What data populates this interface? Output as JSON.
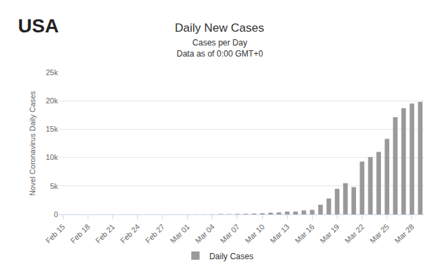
{
  "chart_data": {
    "type": "bar",
    "title": "Daily New Cases",
    "subtitle": [
      "Cases per Day",
      "Data as of 0:00 GMT+0"
    ],
    "annotations": [
      "USA"
    ],
    "y_label": "Novel Coronavirus Daily Cases",
    "categories": [
      "Feb 15",
      null,
      null,
      "Feb 18",
      null,
      null,
      "Feb 21",
      null,
      null,
      "Feb 24",
      null,
      null,
      "Feb 27",
      null,
      null,
      "Mar 01",
      null,
      null,
      "Mar 04",
      null,
      null,
      "Mar 07",
      null,
      null,
      "Mar 10",
      null,
      null,
      "Mar 13",
      null,
      null,
      "Mar 16",
      null,
      null,
      "Mar 19",
      null,
      null,
      "Mar 22",
      null,
      null,
      "Mar 25",
      null,
      null,
      "Mar 28",
      null
    ],
    "series": [
      {
        "name": "Daily Cases",
        "color": "#999999",
        "values": [
          0,
          0,
          0,
          0,
          0,
          0,
          0,
          0,
          0,
          0,
          0,
          0,
          0,
          0,
          0,
          10,
          20,
          20,
          30,
          70,
          60,
          100,
          100,
          150,
          200,
          300,
          350,
          500,
          500,
          700,
          800,
          1700,
          2800,
          4500,
          5500,
          4800,
          9300,
          10100,
          11000,
          13300,
          17100,
          18700,
          19500,
          19800
        ]
      }
    ],
    "ylim": [
      0,
      25000
    ],
    "yticks": [
      0,
      {
        "value": 5000,
        "label": "5k"
      },
      {
        "value": 10000,
        "label": "10k"
      },
      {
        "value": 15000,
        "label": "15k"
      },
      {
        "value": 20000,
        "label": "20k"
      },
      {
        "value": 25000,
        "label": "25k"
      }
    ],
    "grid": true,
    "legend": "bottom"
  }
}
